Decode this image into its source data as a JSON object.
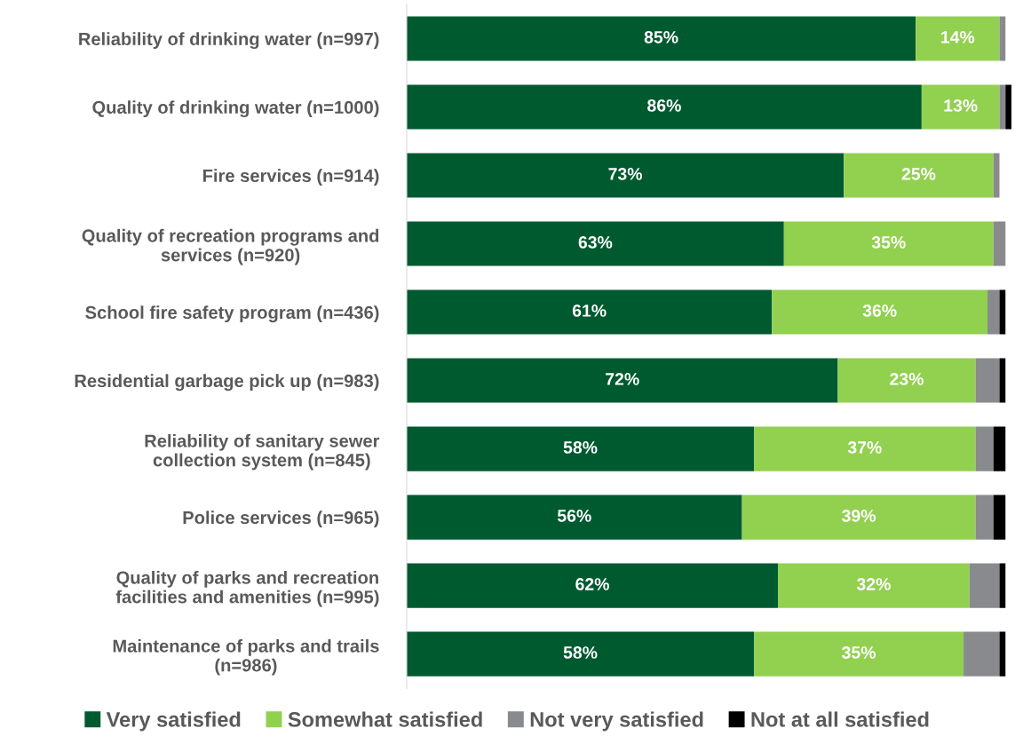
{
  "chart_data": {
    "type": "bar",
    "orientation": "horizontal",
    "stacked": true,
    "legend": "bottom",
    "grid": false,
    "categories": [
      "Reliability of drinking water (n=997)",
      "Quality of drinking water (n=1000)",
      "Fire services (n=914)",
      "Quality of recreation programs and\nservices (n=920)",
      "School fire safety program (n=436)",
      "Residential garbage pick up (n=983)",
      "Reliability of sanitary sewer\ncollection system (n=845)",
      "Police services (n=965)",
      "Quality of parks and recreation\nfacilities and amenities (n=995)",
      "Maintenance of parks and trails\n(n=986)"
    ],
    "series": [
      {
        "name": "Very satisfied",
        "color": "#005a30",
        "values": [
          85,
          86,
          73,
          63,
          61,
          72,
          58,
          56,
          62,
          58
        ],
        "value_labels": [
          "85%",
          "86%",
          "73%",
          "63%",
          "61%",
          "72%",
          "58%",
          "56%",
          "62%",
          "58%"
        ]
      },
      {
        "name": "Somewhat satisfied",
        "color": "#92d050",
        "values": [
          14,
          13,
          25,
          35,
          36,
          23,
          37,
          39,
          32,
          35
        ],
        "value_labels": [
          "14%",
          "13%",
          "25%",
          "35%",
          "36%",
          "23%",
          "37%",
          "39%",
          "32%",
          "35%"
        ]
      },
      {
        "name": "Not very satisfied",
        "color": "#898a8e",
        "values": [
          1,
          1,
          1,
          2,
          2,
          4,
          3,
          3,
          5,
          6
        ]
      },
      {
        "name": "Not at all satisfied",
        "color": "#000000",
        "values": [
          0,
          1,
          0,
          0,
          1,
          1,
          2,
          2,
          1,
          1
        ]
      }
    ]
  }
}
